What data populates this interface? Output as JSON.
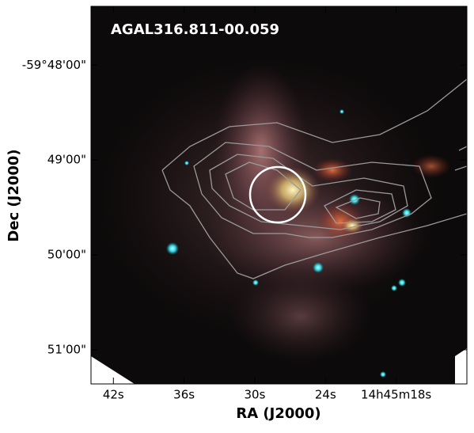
{
  "chart_data": {
    "type": "image",
    "title": "AGAL316.811-00.059",
    "x_label": "RA (J2000)",
    "y_label": "Dec (J2000)",
    "xlim": [
      43.9,
      12.0
    ],
    "xticks": [
      {
        "value": 42,
        "label": "42s"
      },
      {
        "value": 36,
        "label": "36s"
      },
      {
        "value": 30,
        "label": "30s"
      },
      {
        "value": 24,
        "label": "24s"
      },
      {
        "value": 18,
        "label": "14h45m18s"
      }
    ],
    "ylim": [
      51.36,
      47.38
    ],
    "yticks": [
      {
        "value": 48,
        "label": "-59°48'00\""
      },
      {
        "value": 49,
        "label": "49'00\""
      },
      {
        "value": 50,
        "label": "50'00\""
      },
      {
        "value": 51,
        "label": "51'00\""
      }
    ]
  }
}
